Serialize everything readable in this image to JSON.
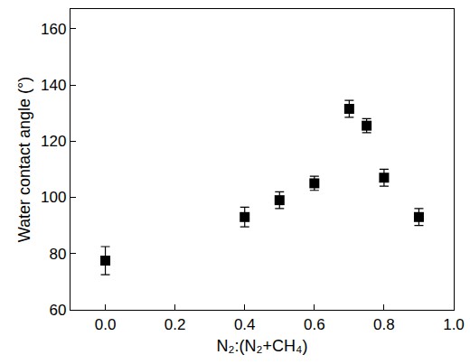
{
  "chart_data": {
    "type": "scatter",
    "x_label": "N₂:(N₂+CH₄)",
    "y_label": "Water contact angle (°)",
    "x": [
      0.0,
      0.4,
      0.5,
      0.6,
      0.7,
      0.75,
      0.8,
      0.9
    ],
    "values": [
      77.5,
      93,
      99,
      105,
      131.5,
      125.5,
      107,
      93
    ],
    "errors": [
      5,
      3.5,
      3,
      2.5,
      3,
      2.5,
      3,
      3
    ],
    "color": "#000000",
    "marker": "square",
    "xlim": [
      -0.1,
      1.0
    ],
    "xticks": [
      {
        "value": 0,
        "label": "0.0"
      },
      0.2,
      0.4,
      0.6,
      0.8,
      {
        "value": 1,
        "label": "1.0"
      }
    ],
    "ylim": [
      60,
      167
    ],
    "yticks": [
      60,
      80,
      100,
      120,
      140,
      160
    ],
    "grid": false
  }
}
